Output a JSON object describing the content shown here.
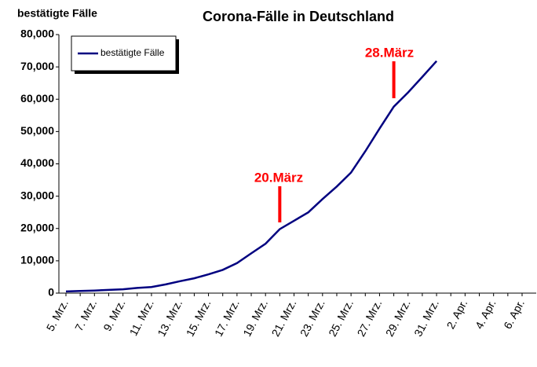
{
  "chart_data": {
    "type": "line",
    "title": "Corona-Fälle in Deutschland",
    "y_label": "bestätigte Fälle",
    "categories": [
      "5. Mrz.",
      null,
      "7. Mrz.",
      null,
      "9. Mrz.",
      null,
      "11. Mrz.",
      null,
      "13. Mrz.",
      null,
      "15. Mrz.",
      null,
      "17. Mrz.",
      null,
      "19. Mrz.",
      null,
      "21. Mrz.",
      null,
      "23. Mrz.",
      null,
      "25. Mrz.",
      null,
      "27. Mrz.",
      null,
      "29. Mrz.",
      null,
      "31. Mrz.",
      null,
      "2. Apr.",
      null,
      "4. Apr.",
      null,
      "6. Apr."
    ],
    "series": [
      {
        "name": "bestätigte Fälle",
        "color": "#000080",
        "values": [
          500,
          670,
          800,
          1000,
          1200,
          1600,
          1900,
          2700,
          3700,
          4600,
          5800,
          7200,
          9300,
          12300,
          15300,
          19800,
          22400,
          25000,
          29100,
          33000,
          37300,
          43900,
          50900,
          57700,
          62100,
          66900,
          71800,
          null,
          null,
          null,
          null,
          null,
          null
        ]
      }
    ],
    "ylim": [
      0,
      80000
    ],
    "yticks": [
      0,
      {
        "value": 10000,
        "label": "10,000"
      },
      {
        "value": 20000,
        "label": "20,000"
      },
      {
        "value": 30000,
        "label": "30,000"
      },
      {
        "value": 40000,
        "label": "40,000"
      },
      {
        "value": 50000,
        "label": "50,000"
      },
      {
        "value": 60000,
        "label": "60,000"
      },
      {
        "value": 70000,
        "label": "70,000"
      },
      {
        "value": 80000,
        "label": "80,000"
      }
    ],
    "annotations": [
      "20.März",
      "28.März"
    ],
    "annotation_color": "#ff0000",
    "legend": "top-left"
  }
}
